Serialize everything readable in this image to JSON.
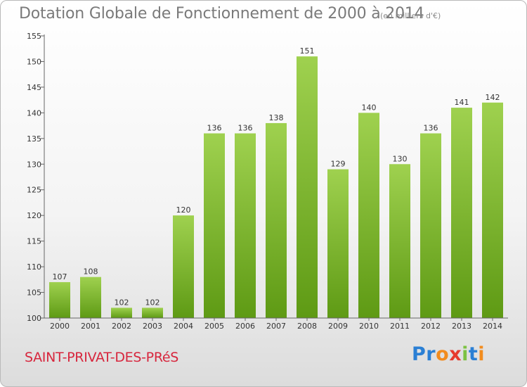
{
  "header": {
    "title": "Dotation Globale de Fonctionnement de 2000 à 2014",
    "unit": "(en milliers d'€)"
  },
  "footer": {
    "place": "SAINT-PRIVAT-DES-PRéS",
    "logo": {
      "text": "Proxiti",
      "letters": [
        "P",
        "r",
        "o",
        "x",
        "i",
        "t",
        "i"
      ],
      "colors": [
        "#2a7fd4",
        "#2a7fd4",
        "#f28c1e",
        "#e63a2e",
        "#7cc242",
        "#2a7fd4",
        "#f28c1e"
      ]
    }
  },
  "colors": {
    "bar_top": "#9fd14f",
    "bar_bottom": "#5e9a14",
    "axis": "#666666",
    "grid": "#cfcfcf",
    "text": "#333333"
  },
  "chart_data": {
    "type": "bar",
    "title": "Dotation Globale de Fonctionnement de 2000 à 2014",
    "subtitle": "(en milliers d'€)",
    "xlabel": "",
    "ylabel": "",
    "categories": [
      "2000",
      "2001",
      "2002",
      "2003",
      "2004",
      "2005",
      "2006",
      "2007",
      "2008",
      "2009",
      "2010",
      "2011",
      "2012",
      "2013",
      "2014"
    ],
    "values": [
      107,
      108,
      102,
      102,
      120,
      136,
      136,
      138,
      151,
      129,
      140,
      130,
      136,
      141,
      142
    ],
    "ylim": [
      100,
      155
    ],
    "yticks": [
      100,
      105,
      110,
      115,
      120,
      125,
      130,
      135,
      140,
      145,
      150,
      155
    ],
    "grid": false,
    "data_labels": true
  }
}
